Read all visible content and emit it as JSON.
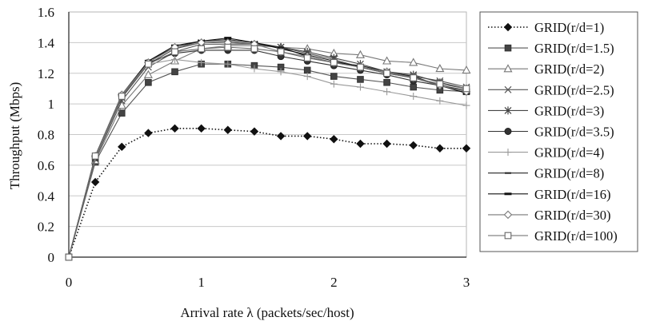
{
  "chart_data": {
    "type": "line",
    "xlabel": "Arrival rate  λ (packets/sec/host)",
    "ylabel": "Throughput  (Mbps)",
    "xlim": [
      0,
      3
    ],
    "ylim": [
      0,
      1.6
    ],
    "x_ticks": [
      "0",
      "1",
      "2",
      "3"
    ],
    "y_ticks": [
      "0",
      "0.2",
      "0.4",
      "0.6",
      "0.8",
      "1",
      "1.2",
      "1.4",
      "1.6"
    ],
    "grid": "horizontal",
    "legend_position": "right",
    "x": [
      0,
      0.2,
      0.4,
      0.6,
      0.8,
      1.0,
      1.2,
      1.4,
      1.6,
      1.8,
      2.0,
      2.2,
      2.4,
      2.6,
      2.8,
      3.0
    ],
    "series": [
      {
        "name": "GRID(r/d=1)",
        "marker": "diamond-filled",
        "dash": "dotted",
        "color": "#111111",
        "values": [
          0,
          0.49,
          0.72,
          0.81,
          0.84,
          0.84,
          0.83,
          0.82,
          0.79,
          0.79,
          0.77,
          0.74,
          0.74,
          0.73,
          0.71,
          0.71
        ]
      },
      {
        "name": "GRID(r/d=1.5)",
        "marker": "square-filled",
        "dash": "solid",
        "color": "#555555",
        "values": [
          0,
          0.62,
          0.94,
          1.14,
          1.21,
          1.26,
          1.26,
          1.25,
          1.24,
          1.22,
          1.18,
          1.16,
          1.14,
          1.11,
          1.09,
          1.08
        ]
      },
      {
        "name": "GRID(r/d=2)",
        "marker": "triangle-open",
        "dash": "solid",
        "color": "#777777",
        "values": [
          0,
          0.63,
          0.99,
          1.19,
          1.28,
          1.36,
          1.38,
          1.38,
          1.37,
          1.36,
          1.33,
          1.32,
          1.28,
          1.27,
          1.23,
          1.22
        ]
      },
      {
        "name": "GRID(r/d=2.5)",
        "marker": "x",
        "dash": "solid",
        "color": "#555555",
        "values": [
          0,
          0.64,
          1.02,
          1.24,
          1.34,
          1.39,
          1.39,
          1.39,
          1.37,
          1.33,
          1.29,
          1.24,
          1.2,
          1.18,
          1.15,
          1.11
        ]
      },
      {
        "name": "GRID(r/d=3)",
        "marker": "asterisk",
        "dash": "solid",
        "color": "#444444",
        "values": [
          0,
          0.65,
          1.04,
          1.26,
          1.36,
          1.4,
          1.41,
          1.39,
          1.37,
          1.34,
          1.3,
          1.26,
          1.21,
          1.19,
          1.14,
          1.1
        ]
      },
      {
        "name": "GRID(r/d=3.5)",
        "marker": "circle-filled",
        "dash": "solid",
        "color": "#333333",
        "values": [
          0,
          0.65,
          1.05,
          1.27,
          1.33,
          1.35,
          1.35,
          1.35,
          1.31,
          1.28,
          1.25,
          1.22,
          1.19,
          1.15,
          1.12,
          1.09
        ]
      },
      {
        "name": "GRID(r/d=4)",
        "marker": "plus",
        "dash": "solid",
        "color": "#999999",
        "values": [
          0,
          0.65,
          1.05,
          1.26,
          1.29,
          1.27,
          1.26,
          1.23,
          1.21,
          1.18,
          1.13,
          1.11,
          1.08,
          1.05,
          1.02,
          0.99
        ]
      },
      {
        "name": "GRID(r/d=8)",
        "marker": "dash",
        "dash": "solid",
        "color": "#222222",
        "values": [
          0,
          0.66,
          1.06,
          1.28,
          1.37,
          1.41,
          1.42,
          1.4,
          1.37,
          1.31,
          1.27,
          1.25,
          1.21,
          1.18,
          1.12,
          1.08
        ]
      },
      {
        "name": "GRID(r/d=16)",
        "marker": "dash-bold",
        "dash": "solid",
        "color": "#111111",
        "values": [
          0,
          0.66,
          1.06,
          1.28,
          1.38,
          1.41,
          1.43,
          1.4,
          1.36,
          1.32,
          1.28,
          1.24,
          1.2,
          1.17,
          1.12,
          1.07
        ]
      },
      {
        "name": "GRID(r/d=30)",
        "marker": "diamond-open",
        "dash": "solid",
        "color": "#777777",
        "values": [
          0,
          0.66,
          1.06,
          1.27,
          1.37,
          1.4,
          1.4,
          1.39,
          1.34,
          1.31,
          1.27,
          1.24,
          1.21,
          1.17,
          1.12,
          1.08
        ]
      },
      {
        "name": "GRID(r/d=100)",
        "marker": "square-open",
        "dash": "solid",
        "color": "#666666",
        "values": [
          0,
          0.66,
          1.05,
          1.26,
          1.34,
          1.36,
          1.37,
          1.36,
          1.34,
          1.3,
          1.27,
          1.24,
          1.2,
          1.17,
          1.13,
          1.1
        ]
      }
    ]
  }
}
